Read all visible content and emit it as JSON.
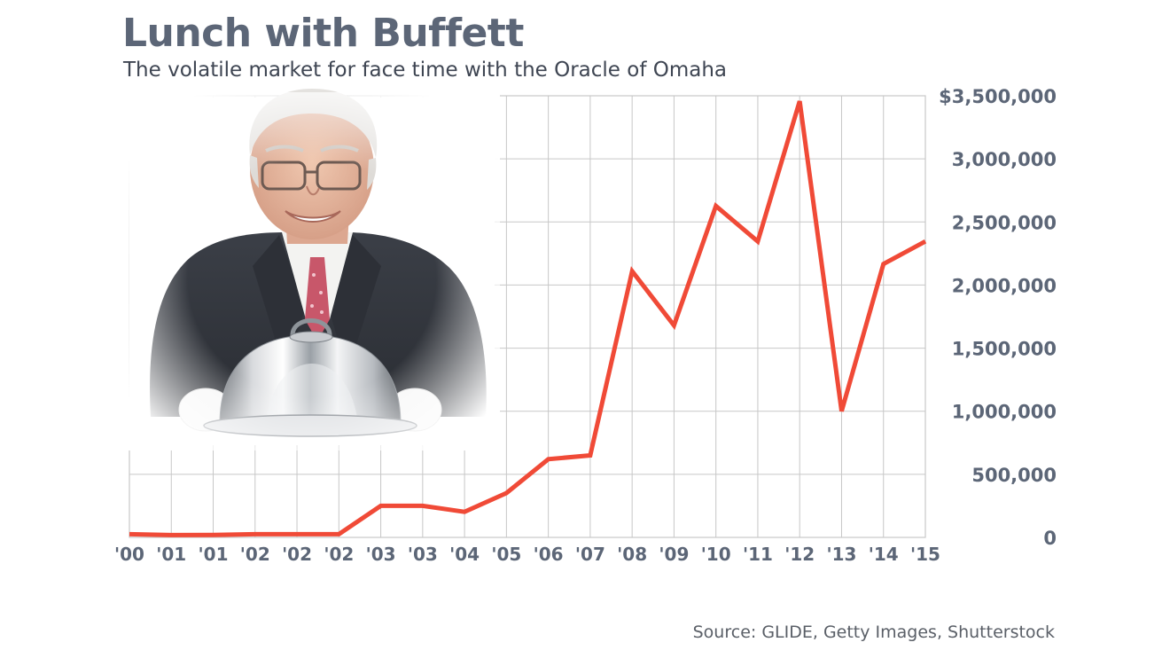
{
  "header": {
    "title": "Lunch with Buffett",
    "subtitle": "The volatile market for face time with the Oracle of Omaha"
  },
  "footer": {
    "source": "Source: GLIDE, Getty Images, Shutterstock"
  },
  "photo": {
    "icon": "buffett-with-serving-cloche-photo"
  },
  "colors": {
    "line": "#f04a37",
    "grid": "#c7c7c7",
    "text": "#5c6677"
  },
  "chart_data": {
    "type": "line",
    "title": "Lunch with Buffett",
    "subtitle": "The volatile market for face time with the Oracle of Omaha",
    "xlabel": "",
    "ylabel": "",
    "categories": [
      "'00",
      "'01",
      "'01",
      "'02",
      "'02",
      "'02",
      "'03",
      "'03",
      "'04",
      "'05",
      "'06",
      "'07",
      "'08",
      "'09",
      "'10",
      "'11",
      "'12",
      "'13",
      "'14",
      "'15"
    ],
    "series": [
      {
        "values": [
          25000,
          18000,
          20000,
          25000,
          25000,
          25000,
          250100,
          250100,
          202100,
          351100,
          620100,
          650100,
          2110100,
          1680300,
          2626411,
          2345678,
          3456789,
          1000100,
          2166766,
          2345678
        ]
      }
    ],
    "ylim": [
      0,
      3500000
    ],
    "yticks": [
      0,
      500000,
      1000000,
      1500000,
      2000000,
      2500000,
      3000000,
      3500000
    ],
    "ytick_labels": [
      "0",
      "500,000",
      "1,000,000",
      "1,500,000",
      "2,000,000",
      "2,500,000",
      "3,000,000",
      "$3,500,000"
    ],
    "y_axis_side": "right",
    "grid": true,
    "legend": "none"
  }
}
